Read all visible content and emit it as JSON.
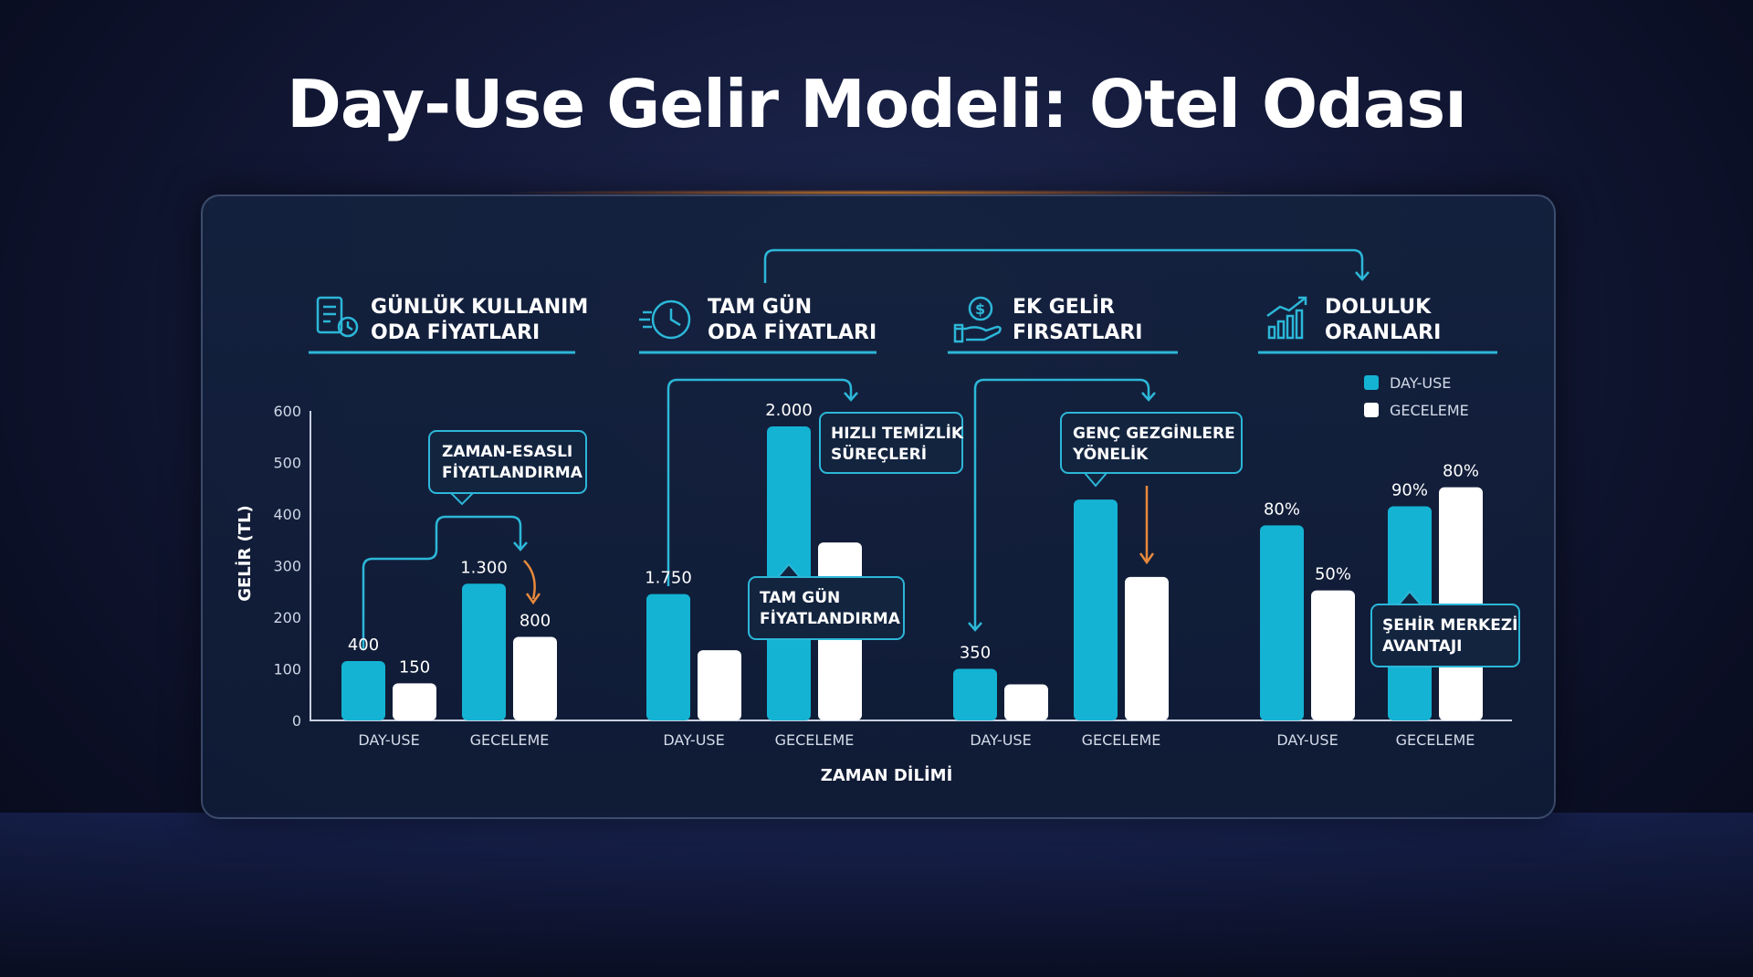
{
  "title": "Day-Use Gelir Modeli: Otel Odası",
  "colors": {
    "day_use": "#14b3d4",
    "geceleme": "#ffffff",
    "accent": "#2cb7d8",
    "arrow_orange": "#e8893a"
  },
  "headers": [
    {
      "line1": "GÜNLÜK KULLANIM",
      "line2": "ODA FİYATLARI",
      "icon": "price-list-clock-icon"
    },
    {
      "line1": "TAM GÜN",
      "line2": "ODA FİYATLARI",
      "icon": "clock-icon"
    },
    {
      "line1": "EK GELİR",
      "line2": "FIRSATLARI",
      "icon": "money-hand-icon"
    },
    {
      "line1": "DOLULUK",
      "line2": "ORANLARI",
      "icon": "growth-chart-icon"
    }
  ],
  "callouts": [
    {
      "line1": "ZAMAN-ESASLI",
      "line2": "FİYATLANDIRMA"
    },
    {
      "line1": "HIZLI TEMİZLİK",
      "line2": "SÜREÇLERİ"
    },
    {
      "line1": "TAM GÜN",
      "line2": "FİYATLANDIRMA"
    },
    {
      "line1": "GENÇ GEZGİNLERE",
      "line2": "YÖNELİK"
    },
    {
      "line1": "ŞEHİR MERKEZİ",
      "line2": "AVANTAJI"
    }
  ],
  "chart_data": {
    "type": "bar",
    "ylabel": "GELİR (TL)",
    "xlabel": "ZAMAN DİLİMİ",
    "ylim": [
      0,
      600
    ],
    "yticks": [
      0,
      100,
      200,
      300,
      400,
      500,
      600
    ],
    "legend": {
      "position": "top-right",
      "items": [
        "DAY-USE",
        "GECELEME"
      ]
    },
    "categories": [
      "DAY-USE",
      "GECELEME",
      "DAY-USE",
      "GECELEME",
      "DAY-USE",
      "GECELEME",
      "DAY-USE",
      "GECELEME"
    ],
    "series": [
      {
        "name": "DAY-USE",
        "values": [
          115,
          265,
          245,
          570,
          100,
          428,
          378,
          415
        ]
      },
      {
        "name": "GECELEME",
        "values": [
          72,
          162,
          136,
          345,
          70,
          278,
          252,
          452
        ]
      }
    ],
    "data_labels": [
      [
        "400",
        "1.300",
        "1.750",
        "2.000",
        "350",
        "",
        "80%",
        "90%"
      ],
      [
        "150",
        "800",
        "",
        "",
        "",
        "",
        "50%",
        "80%"
      ]
    ],
    "grid": false
  }
}
